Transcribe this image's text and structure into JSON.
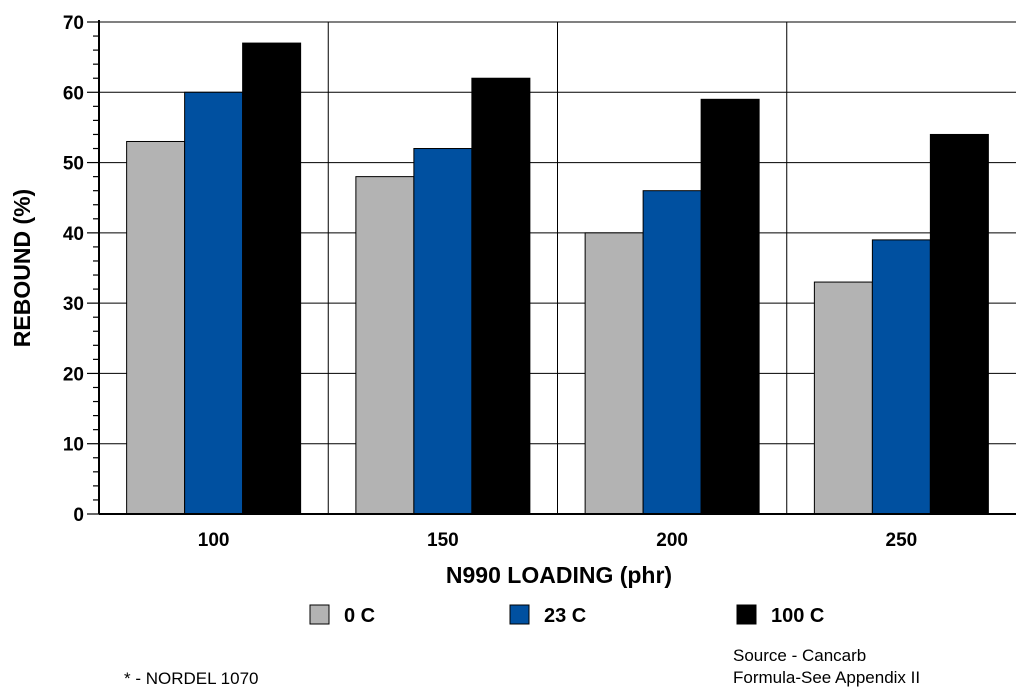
{
  "chart_data": {
    "type": "bar",
    "categories": [
      "100",
      "150",
      "200",
      "250"
    ],
    "series": [
      {
        "name": "0 C",
        "values": [
          53,
          48,
          40,
          33
        ],
        "color": "#b3b3b3"
      },
      {
        "name": "23 C",
        "values": [
          60,
          52,
          46,
          39
        ],
        "color": "#0050a0"
      },
      {
        "name": "100 C",
        "values": [
          67,
          62,
          59,
          54
        ],
        "color": "#000000"
      }
    ],
    "yticks": [
      0,
      10,
      20,
      30,
      40,
      50,
      60,
      70
    ],
    "xlabel": "N990 LOADING (phr)",
    "ylabel": "REBOUND (%)",
    "ylim": [
      0,
      70
    ],
    "grid": true,
    "legend_position": "bottom"
  },
  "notes": {
    "footnote": "* - NORDEL 1070",
    "source": "Source - Cancarb",
    "formula": "Formula-See Appendix II"
  }
}
